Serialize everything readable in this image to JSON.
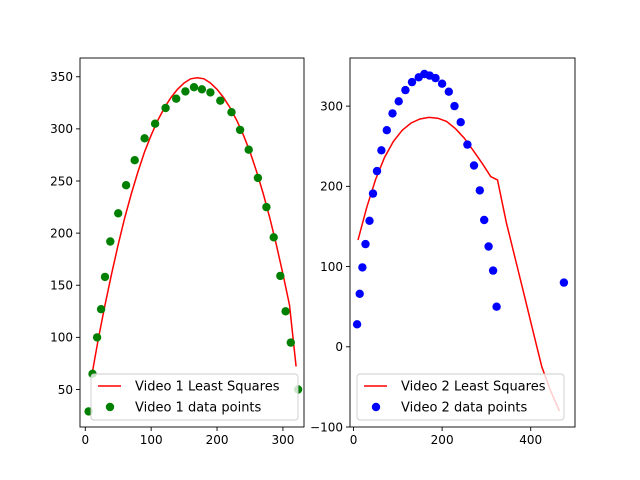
{
  "chart_data": [
    {
      "type": "scatter",
      "xlim": [
        -8,
        332
      ],
      "ylim": [
        14,
        368
      ],
      "xticks": [
        0,
        100,
        200,
        300
      ],
      "yticks": [
        50,
        100,
        150,
        200,
        250,
        300,
        350
      ],
      "grid": false,
      "legend_position": "bottom-right",
      "series": [
        {
          "name": "Video 1 Least Squares",
          "kind": "line",
          "color": "#ff0000",
          "x": [
            10,
            20,
            30,
            40,
            50,
            60,
            70,
            80,
            90,
            100,
            110,
            120,
            130,
            140,
            150,
            160,
            170,
            180,
            190,
            200,
            210,
            220,
            230,
            240,
            250,
            260,
            270,
            280,
            290,
            300,
            310,
            320
          ],
          "y": [
            64,
            99,
            131,
            161,
            189,
            215,
            238,
            259,
            278,
            294,
            308,
            320,
            330,
            338,
            344,
            348,
            349,
            348,
            344,
            338,
            330,
            320,
            308,
            294,
            278,
            259,
            238,
            215,
            189,
            161,
            131,
            72
          ]
        },
        {
          "name": "Video 1 data points",
          "kind": "scatter",
          "color": "#008000",
          "x": [
            5,
            11,
            18,
            24,
            30,
            38,
            50,
            62,
            75,
            90,
            106,
            122,
            138,
            152,
            165,
            177,
            190,
            205,
            222,
            235,
            248,
            262,
            275,
            286,
            296,
            304,
            312,
            323
          ],
          "y": [
            29,
            65,
            100,
            127,
            158,
            192,
            219,
            246,
            270,
            291,
            305,
            320,
            329,
            336,
            340,
            338,
            335,
            327,
            316,
            299,
            280,
            253,
            225,
            196,
            159,
            125,
            95,
            50
          ]
        }
      ]
    },
    {
      "type": "scatter",
      "xlim": [
        -8,
        500
      ],
      "ylim": [
        -100,
        360
      ],
      "xticks": [
        0,
        200,
        400
      ],
      "yticks": [
        -100,
        0,
        100,
        200,
        300
      ],
      "grid": false,
      "legend_position": "bottom-right",
      "series": [
        {
          "name": "Video 2 Least Squares",
          "kind": "line",
          "color": "#ff0000",
          "x": [
            10,
            30,
            50,
            70,
            90,
            110,
            130,
            150,
            170,
            190,
            210,
            230,
            250,
            270,
            290,
            310,
            325,
            345,
            365,
            385,
            405,
            425,
            445,
            465
          ],
          "y": [
            133,
            174,
            209,
            236,
            256,
            270,
            279,
            284,
            286,
            285,
            281,
            272,
            260,
            245,
            229,
            212,
            208,
            155,
            110,
            65,
            20,
            -25,
            -55,
            -80
          ]
        },
        {
          "name": "Video 2 data points",
          "kind": "scatter",
          "color": "#0000ff",
          "x": [
            8,
            14,
            20,
            27,
            36,
            44,
            53,
            63,
            75,
            88,
            102,
            117,
            132,
            147,
            160,
            172,
            185,
            200,
            215,
            228,
            242,
            257,
            272,
            285,
            295,
            305,
            315,
            323,
            475
          ],
          "y": [
            28,
            66,
            99,
            128,
            157,
            191,
            219,
            245,
            270,
            291,
            306,
            320,
            330,
            336,
            340,
            338,
            335,
            328,
            318,
            300,
            280,
            252,
            226,
            195,
            158,
            125,
            95,
            50,
            80
          ]
        }
      ]
    }
  ]
}
